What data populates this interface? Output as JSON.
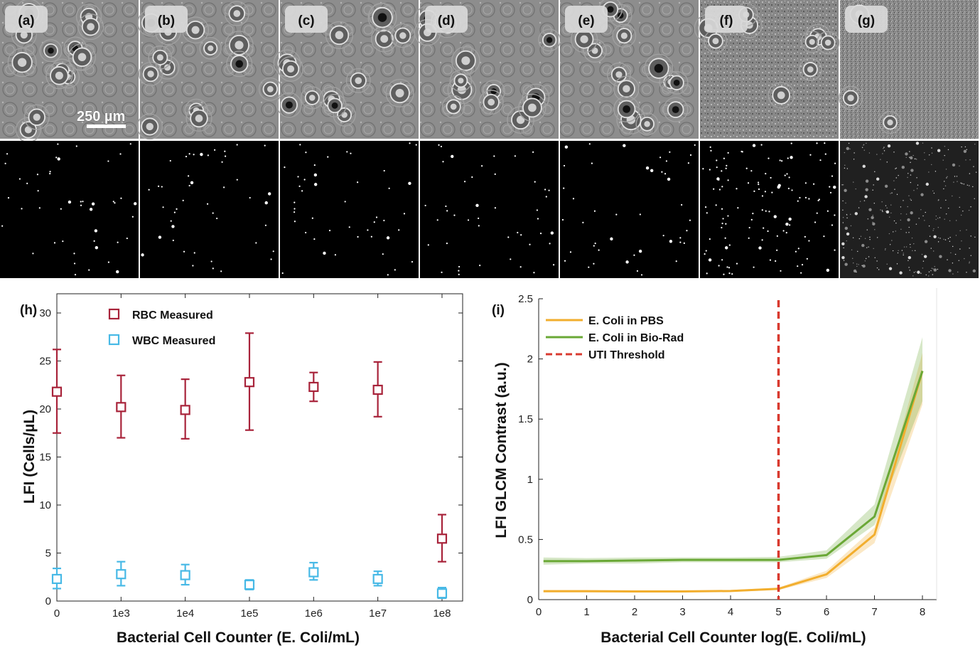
{
  "micrographs": {
    "panel_labels": [
      "(a)",
      "(b)",
      "(c)",
      "(d)",
      "(e)",
      "(f)",
      "(g)"
    ],
    "scale_bar_label": "250 µm"
  },
  "colors": {
    "rbc": "#a8233a",
    "wbc": "#47b9e6",
    "pbs": "#f2ae2e",
    "biorad": "#6aa836",
    "threshold": "#d93a2f"
  },
  "chart_data": [
    {
      "panel_label": "(h)",
      "type": "scatter",
      "xlabel": "Bacterial Cell Counter (E. Coli/mL)",
      "ylabel": "LFI (Cells/µL)",
      "categories": [
        "0",
        "1e3",
        "1e4",
        "1e5",
        "1e6",
        "1e7",
        "1e8"
      ],
      "ylim": [
        0,
        32
      ],
      "yticks": [
        0,
        5,
        10,
        15,
        20,
        25,
        30
      ],
      "grid": false,
      "legend_position": "top-left",
      "series": [
        {
          "name": "RBC Measured",
          "values": [
            21.8,
            20.2,
            19.9,
            22.8,
            22.3,
            22.0,
            6.5
          ],
          "err_low": [
            17.5,
            17.0,
            16.9,
            17.8,
            20.8,
            19.2,
            4.1
          ],
          "err_high": [
            26.2,
            23.5,
            23.1,
            27.9,
            23.8,
            24.9,
            9.0
          ]
        },
        {
          "name": "WBC Measured",
          "values": [
            2.3,
            2.8,
            2.7,
            1.7,
            3.0,
            2.3,
            0.8
          ],
          "err_low": [
            1.3,
            1.6,
            1.7,
            1.2,
            2.2,
            1.6,
            0.3
          ],
          "err_high": [
            3.4,
            4.1,
            3.8,
            2.2,
            4.0,
            3.1,
            1.4
          ]
        }
      ]
    },
    {
      "panel_label": "(i)",
      "type": "line",
      "xlabel": "Bacterial Cell Counter log(E. Coli/mL)",
      "ylabel": "LFI GLCM Contrast (a.u.)",
      "xlim": [
        0,
        8.3
      ],
      "ylim": [
        0,
        2.5
      ],
      "xticks": [
        0,
        1,
        2,
        3,
        4,
        5,
        6,
        7,
        8
      ],
      "yticks": [
        0,
        0.5,
        1,
        1.5,
        2,
        2.5
      ],
      "ytick_labels": [
        "0",
        "0.5",
        "1",
        "1.5",
        "2",
        "2.5"
      ],
      "grid": false,
      "legend_position": "top-left",
      "series": [
        {
          "name": "E. Coli in PBS",
          "x": [
            0.1,
            1,
            2,
            3,
            4,
            5,
            6,
            7,
            8
          ],
          "y": [
            0.07,
            0.07,
            0.068,
            0.068,
            0.072,
            0.09,
            0.21,
            0.54,
            1.9
          ],
          "band_low": [
            0.06,
            0.06,
            0.06,
            0.06,
            0.065,
            0.08,
            0.18,
            0.47,
            1.62
          ],
          "band_high": [
            0.08,
            0.08,
            0.078,
            0.078,
            0.08,
            0.1,
            0.24,
            0.6,
            2.05
          ]
        },
        {
          "name": "E. Coli in Bio-Rad",
          "x": [
            0.1,
            1,
            2,
            3,
            4,
            5,
            6,
            7,
            8
          ],
          "y": [
            0.32,
            0.32,
            0.325,
            0.33,
            0.33,
            0.33,
            0.37,
            0.69,
            1.9
          ],
          "band_low": [
            0.29,
            0.3,
            0.3,
            0.31,
            0.31,
            0.31,
            0.34,
            0.62,
            1.65
          ],
          "band_high": [
            0.35,
            0.345,
            0.35,
            0.35,
            0.35,
            0.355,
            0.41,
            0.79,
            2.18
          ]
        },
        {
          "name": "UTI Threshold",
          "x_value": 5
        }
      ]
    }
  ]
}
